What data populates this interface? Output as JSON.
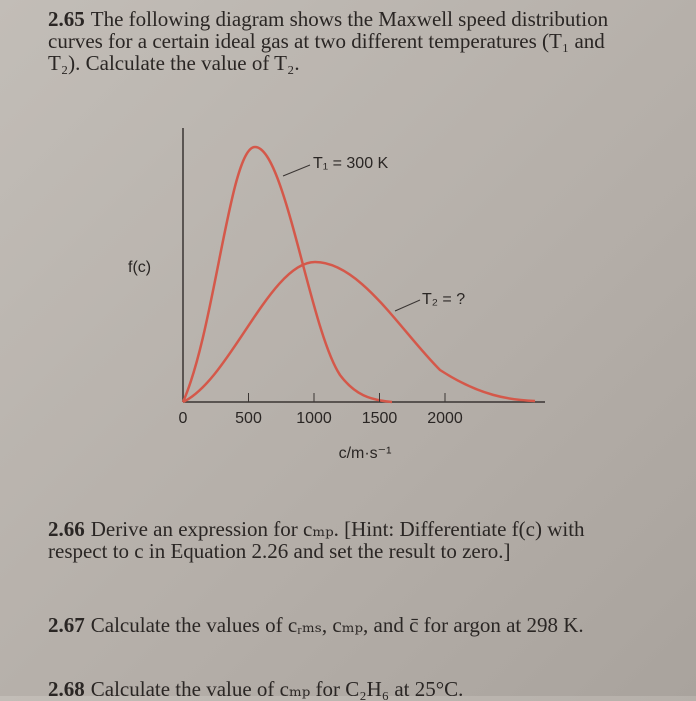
{
  "problems": [
    {
      "number": "2.65",
      "text": "The following diagram shows the Maxwell speed distribution curves for a certain ideal gas at two different temperatures (T₁ and T₂). Calculate the value of T₂."
    },
    {
      "number": "2.66",
      "text": "Derive an expression for cₘₚ. [Hint: Differentiate f(c) with respect to c in Equation 2.26 and set the result to zero.]"
    },
    {
      "number": "2.67",
      "text": "Calculate the values of cᵣₘₛ, cₘₚ, and c̄ for argon at 298 K."
    },
    {
      "number": "2.68",
      "text": "Calculate the value of cₘₚ for C₂H₆ at 25°C."
    }
  ],
  "figure": {
    "y_label": "f(c)",
    "x_label": "c/m·s⁻¹",
    "xticks": [
      0,
      500,
      1000,
      1500,
      2000
    ],
    "curve_labels": [
      "T₁ = 300 K",
      "T₂ = ?"
    ]
  }
}
